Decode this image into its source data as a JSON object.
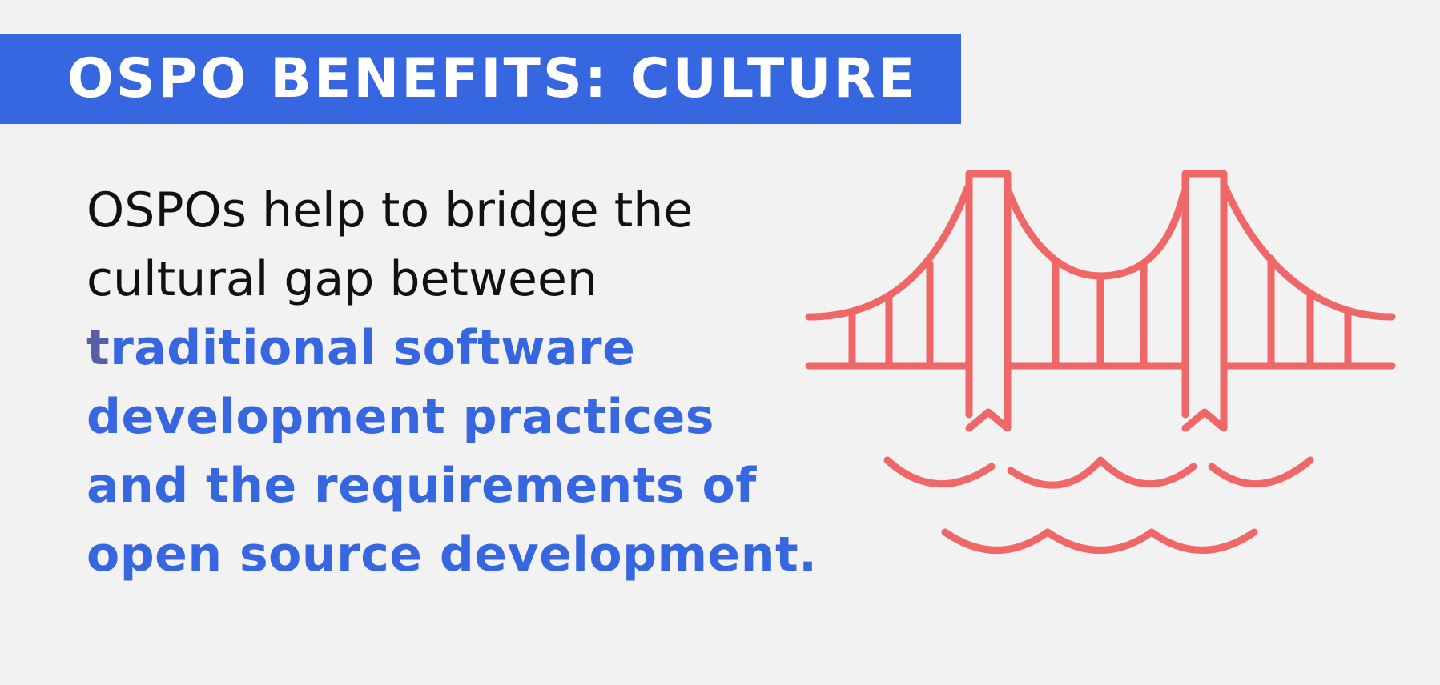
{
  "banner": {
    "title": "OSPO BENEFITS: CULTURE"
  },
  "body": {
    "line1": "OSPOs help to bridge the",
    "line2": "cultural gap between",
    "accent_line1_first": "t",
    "accent_line1_rest": "raditional software",
    "accent_line2": "development practices",
    "accent_line3": "and the requirements of",
    "accent_line4": "open source development."
  },
  "colors": {
    "banner_bg": "#3667e0",
    "accent_text": "#3667e0",
    "bridge_stroke": "#ef6767",
    "page_bg": "#f3f2f2"
  },
  "icons": {
    "illustration": "suspension-bridge-icon"
  }
}
